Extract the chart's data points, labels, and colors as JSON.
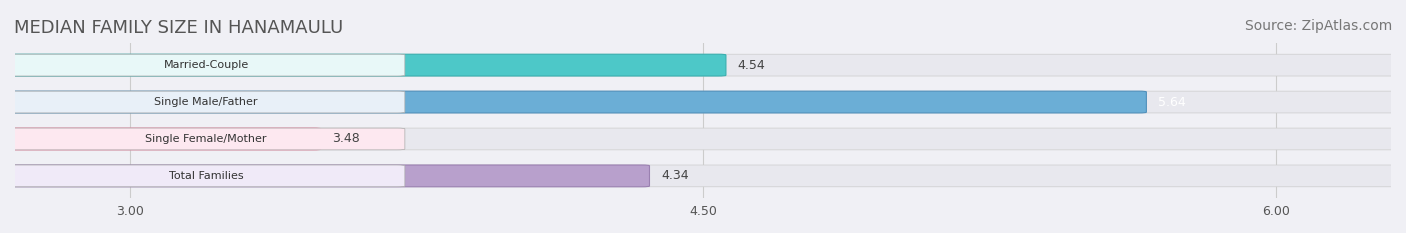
{
  "title": "MEDIAN FAMILY SIZE IN HANAMAULU",
  "source": "Source: ZipAtlas.com",
  "categories": [
    "Married-Couple",
    "Single Male/Father",
    "Single Female/Mother",
    "Total Families"
  ],
  "values": [
    4.54,
    5.64,
    3.48,
    4.34
  ],
  "bar_colors": [
    "#4DC8C8",
    "#6BAED6",
    "#F9A8C0",
    "#B8A0CC"
  ],
  "bar_edge_colors": [
    "#3AAFAF",
    "#5090BB",
    "#F080A0",
    "#9A80B0"
  ],
  "label_bg_colors": [
    "#E8F8F8",
    "#E8F0F8",
    "#FDE8F0",
    "#F0EAF8"
  ],
  "value_text_colors": [
    "#444444",
    "#ffffff",
    "#444444",
    "#444444"
  ],
  "xlim": [
    2.7,
    6.3
  ],
  "xticks": [
    3.0,
    4.5,
    6.0
  ],
  "xtick_labels": [
    "3.00",
    "4.50",
    "6.00"
  ],
  "background_color": "#F0F0F5",
  "bar_background_color": "#E8E8EE",
  "title_fontsize": 13,
  "source_fontsize": 10,
  "bar_height": 0.55,
  "figsize": [
    14.06,
    2.33
  ],
  "dpi": 100
}
